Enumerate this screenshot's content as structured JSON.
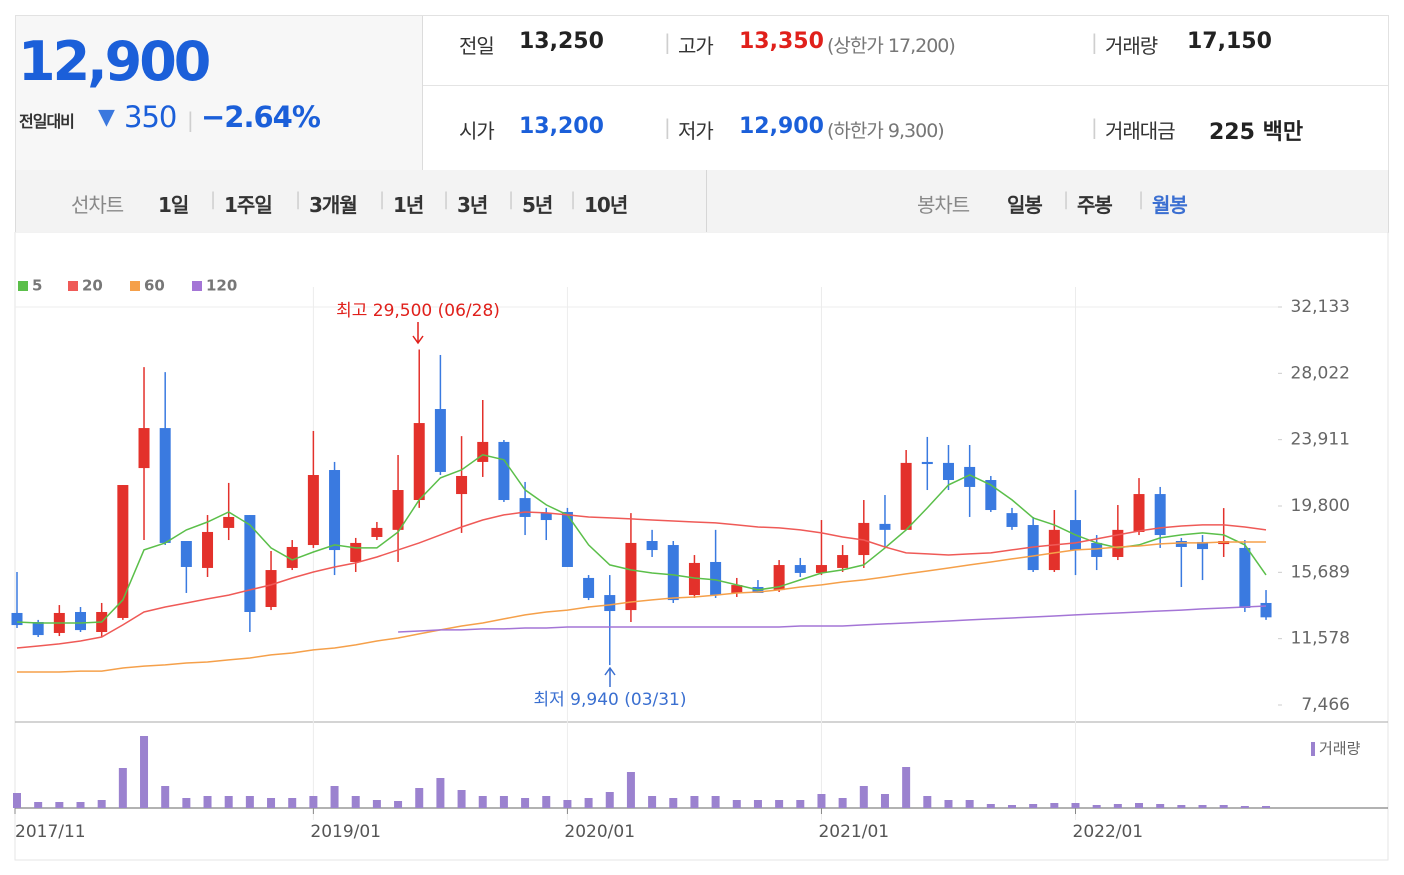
{
  "quote": {
    "price": "12,900",
    "change_label": "전일대비",
    "change": "350",
    "change_pct": "−2.64%"
  },
  "summary": [
    [
      {
        "label": "전일",
        "value": "13,250"
      },
      {
        "label": "고가",
        "value": "13,350",
        "note": "(상한가 17,200)"
      },
      {
        "label": "거래량",
        "value": "17,150"
      }
    ],
    [
      {
        "label": "시가",
        "value": "13,200"
      },
      {
        "label": "저가",
        "value": "12,900",
        "note": "(하한가 9,300)"
      },
      {
        "label": "거래대금",
        "value": "225 백만"
      }
    ]
  ],
  "tabs": {
    "line_chart": {
      "label": "선차트",
      "periods": [
        "1일",
        "1주일",
        "3개월",
        "1년",
        "3년",
        "5년",
        "10년"
      ]
    },
    "candle_chart": {
      "label": "봉차트",
      "periods": [
        "일봉",
        "주봉",
        "월봉"
      ]
    }
  },
  "chart_data": {
    "type": "candlestick",
    "categories": [
      "2017/11",
      null,
      null,
      null,
      null,
      null,
      null,
      null,
      null,
      null,
      null,
      null,
      null,
      null,
      "2019/01",
      null,
      null,
      null,
      null,
      null,
      null,
      null,
      null,
      null,
      null,
      null,
      "2020/01",
      null,
      null,
      null,
      null,
      null,
      null,
      null,
      null,
      null,
      null,
      null,
      "2021/01",
      null,
      null,
      null,
      null,
      null,
      null,
      null,
      null,
      null,
      null,
      null,
      "2022/01",
      null,
      null,
      null,
      null,
      null,
      null,
      null,
      null,
      null
    ],
    "open": [
      13170,
      12610,
      11930,
      13230,
      11990,
      12860,
      22150,
      24630,
      17630,
      15960,
      18440,
      19240,
      13540,
      15960,
      17380,
      22030,
      16330,
      17880,
      18320,
      20170,
      25810,
      20540,
      22530,
      23770,
      20290,
      19360,
      19430,
      15340,
      14280,
      13350,
      17630,
      17380,
      14280,
      16330,
      14410,
      14780,
      14590,
      16140,
      15650,
      15960,
      16760,
      18690,
      18320,
      22530,
      22470,
      22220,
      21410,
      19360,
      18620,
      15830,
      18930,
      17510,
      16640,
      18190,
      20540,
      17630,
      17570,
      17440,
      17200,
      13790
    ],
    "high": [
      15710,
      12740,
      13660,
      13540,
      13790,
      21100,
      28410,
      28100,
      17630,
      19240,
      21230,
      19240,
      17010,
      17690,
      24450,
      22530,
      17820,
      18810,
      22960,
      29500,
      29160,
      24130,
      26370,
      23890,
      21290,
      19680,
      19680,
      15520,
      15520,
      19360,
      18320,
      17630,
      16760,
      18320,
      15340,
      15210,
      16450,
      16580,
      18930,
      17380,
      20170,
      20480,
      23270,
      24080,
      23580,
      23580,
      21660,
      19680,
      19120,
      19550,
      20790,
      18000,
      19860,
      21530,
      20980,
      17820,
      18000,
      19670,
      17690,
      14590
    ],
    "low": [
      12240,
      11680,
      11740,
      11990,
      11680,
      12740,
      17690,
      17380,
      14410,
      15400,
      17690,
      11990,
      13350,
      15830,
      17200,
      15520,
      15710,
      17690,
      16330,
      19680,
      21720,
      18130,
      21600,
      20050,
      18000,
      17690,
      16020,
      13970,
      9940,
      12610,
      16640,
      13790,
      14100,
      14100,
      14160,
      14410,
      14470,
      15400,
      15520,
      15710,
      15960,
      17260,
      18320,
      20790,
      20790,
      19120,
      19430,
      18320,
      15710,
      15710,
      15520,
      15830,
      16450,
      18000,
      17200,
      14780,
      15210,
      16640,
      13230,
      12740
    ],
    "close": [
      12420,
      11800,
      13170,
      12110,
      13230,
      21100,
      24630,
      17510,
      16020,
      18190,
      19120,
      13230,
      15830,
      17260,
      21720,
      17070,
      17510,
      18440,
      20790,
      24940,
      21910,
      21660,
      23770,
      20170,
      19120,
      18930,
      16020,
      14100,
      13290,
      17510,
      17070,
      13970,
      16270,
      14280,
      14900,
      14410,
      16140,
      15650,
      16140,
      16760,
      18750,
      18320,
      22470,
      22400,
      21410,
      20980,
      19550,
      18500,
      15830,
      18320,
      17070,
      16640,
      18320,
      20540,
      18000,
      17260,
      17130,
      17630,
      13480,
      12900
    ],
    "up_color": "#e3312b",
    "down_color": "#3a7ae0",
    "series": [
      {
        "name": "5",
        "color": "#5bbf4a",
        "values": [
          12610,
          12550,
          12550,
          12550,
          12610,
          13980,
          17080,
          17510,
          18320,
          18810,
          19430,
          18630,
          17200,
          16460,
          16950,
          17390,
          17200,
          17200,
          18190,
          20180,
          21540,
          22040,
          22970,
          22660,
          20800,
          19870,
          19250,
          17390,
          16150,
          15840,
          15650,
          15530,
          15340,
          15220,
          14910,
          14600,
          14790,
          15220,
          15650,
          15840,
          16150,
          17200,
          18320,
          19680,
          21110,
          21730,
          21110,
          20180,
          19060,
          18630,
          18010,
          17510,
          17200,
          17390,
          17820,
          18010,
          18130,
          18010,
          17390,
          15530
        ]
      },
      {
        "name": "20",
        "color": "#ef5a57",
        "values": [
          11000,
          11120,
          11250,
          11430,
          11680,
          12430,
          13230,
          13540,
          13790,
          14040,
          14280,
          14600,
          14910,
          15340,
          15710,
          16020,
          16270,
          16640,
          17080,
          17510,
          18010,
          18500,
          18930,
          19250,
          19430,
          19370,
          19250,
          19120,
          19060,
          19000,
          18930,
          18870,
          18810,
          18750,
          18630,
          18500,
          18440,
          18320,
          18130,
          17880,
          17690,
          17260,
          16890,
          16830,
          16760,
          16830,
          16890,
          17080,
          17260,
          17390,
          17510,
          17760,
          18010,
          18250,
          18440,
          18560,
          18630,
          18630,
          18500,
          18320
        ]
      },
      {
        "name": "60",
        "color": "#f5a04a",
        "values": [
          9510,
          9510,
          9510,
          9570,
          9570,
          9760,
          9880,
          9950,
          10070,
          10130,
          10260,
          10380,
          10570,
          10690,
          10880,
          11000,
          11190,
          11430,
          11620,
          11870,
          12120,
          12360,
          12550,
          12800,
          13050,
          13230,
          13350,
          13540,
          13670,
          13850,
          13980,
          14100,
          14160,
          14280,
          14410,
          14470,
          14600,
          14780,
          14910,
          15090,
          15220,
          15400,
          15590,
          15770,
          15960,
          16150,
          16330,
          16520,
          16700,
          16890,
          17080,
          17140,
          17260,
          17320,
          17450,
          17510,
          17510,
          17570,
          17570,
          17570
        ]
      },
      {
        "name": "120",
        "color": "#a475d6",
        "values": [
          null,
          null,
          null,
          null,
          null,
          null,
          null,
          null,
          null,
          null,
          null,
          null,
          null,
          null,
          null,
          null,
          null,
          null,
          11990,
          12050,
          12120,
          12120,
          12180,
          12180,
          12240,
          12240,
          12300,
          12300,
          12300,
          12300,
          12300,
          12300,
          12300,
          12300,
          12300,
          12300,
          12300,
          12360,
          12360,
          12360,
          12430,
          12490,
          12550,
          12610,
          12670,
          12740,
          12800,
          12860,
          12920,
          12980,
          13050,
          13110,
          13170,
          13230,
          13290,
          13350,
          13420,
          13480,
          13540,
          13600
        ]
      }
    ],
    "volume": {
      "name": "거래량",
      "color": "#9b82cf",
      "values": [
        15,
        6,
        6,
        6,
        8,
        40,
        72,
        22,
        10,
        12,
        12,
        12,
        10,
        10,
        12,
        22,
        12,
        8,
        7,
        20,
        30,
        18,
        12,
        12,
        10,
        12,
        8,
        10,
        16,
        36,
        12,
        10,
        12,
        12,
        8,
        8,
        8,
        8,
        14,
        10,
        22,
        14,
        41,
        12,
        8,
        8,
        4,
        3,
        4,
        5,
        5,
        3,
        4,
        5,
        4,
        3,
        3,
        3,
        2,
        2
      ]
    },
    "ylim": [
      7466,
      32133
    ],
    "yticks": [
      {
        "value": 7466,
        "label": "7,466"
      },
      {
        "value": 11578,
        "label": "11,578"
      },
      {
        "value": 15689,
        "label": "15,689"
      },
      {
        "value": 19800,
        "label": "19,800"
      },
      {
        "value": 23911,
        "label": "23,911"
      },
      {
        "value": 28022,
        "label": "28,022"
      },
      {
        "value": 32133,
        "label": "32,133"
      }
    ],
    "annotations": {
      "high": "최고 29,500 (06/28)",
      "low": "최저 9,940 (03/31)"
    }
  }
}
